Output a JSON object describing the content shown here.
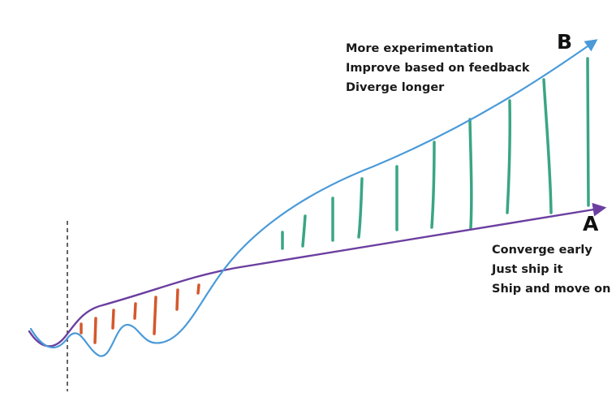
{
  "diagram": {
    "path_b": {
      "letter": "B",
      "notes": [
        "More experimentation",
        "Improve based on feedback",
        "Diverge longer"
      ]
    },
    "path_a": {
      "letter": "A",
      "notes": [
        "Converge early",
        "Just ship it",
        "Ship and move on"
      ]
    },
    "colors": {
      "path_b_line": "#4a9ad9",
      "path_a_line": "#6b3fa0",
      "early_marks": "#d4582c",
      "later_marks": "#3aa585",
      "divider": "#222222"
    }
  }
}
